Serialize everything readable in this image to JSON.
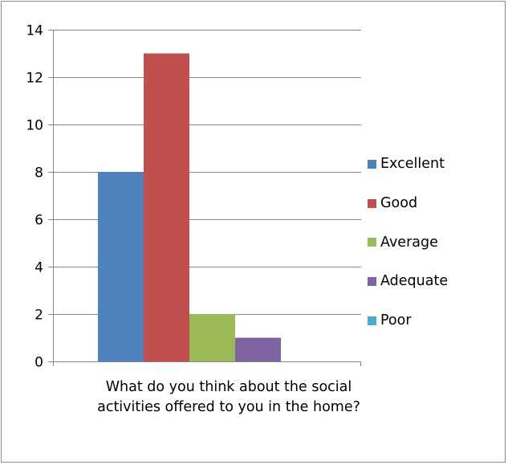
{
  "chart_data": {
    "type": "bar",
    "categories": [
      "What do you think about the social activities offered to you in the home?"
    ],
    "series": [
      {
        "name": "Excellent",
        "values": [
          8
        ],
        "color": "#4F81BD"
      },
      {
        "name": "Good",
        "values": [
          13
        ],
        "color": "#C0504D"
      },
      {
        "name": "Average",
        "values": [
          2
        ],
        "color": "#9BBB59"
      },
      {
        "name": "Adequate",
        "values": [
          1
        ],
        "color": "#8064A2"
      },
      {
        "name": "Poor",
        "values": [
          0
        ],
        "color": "#4BACC6"
      }
    ],
    "y_ticks": [
      "0",
      "2",
      "4",
      "6",
      "8",
      "10",
      "12",
      "14"
    ],
    "ylim": [
      0,
      14
    ],
    "grid": true,
    "legend_position": "right",
    "title": "",
    "xlabel": "",
    "ylabel": ""
  }
}
